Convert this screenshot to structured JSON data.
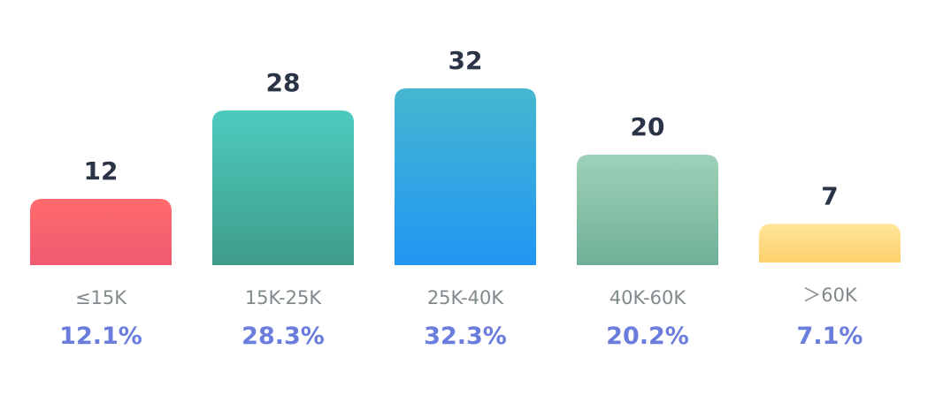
{
  "chart_data": {
    "type": "bar",
    "categories": [
      "≤15K",
      "15K-25K",
      "25K-40K",
      "40K-60K",
      "＞60K"
    ],
    "values": [
      12,
      28,
      32,
      20,
      7
    ],
    "percentages": [
      "12.1%",
      "28.3%",
      "32.3%",
      "20.2%",
      "7.1%"
    ],
    "ylim": [
      0,
      32
    ],
    "grid": false,
    "legend": "none",
    "bar_gradients": [
      [
        "#ff6b6b",
        "#ef5a73"
      ],
      [
        "#4ccbbe",
        "#3f9c8a"
      ],
      [
        "#45b7d0",
        "#2196f3"
      ],
      [
        "#9dd0b8",
        "#6fb096"
      ],
      [
        "#ffe59c",
        "#ffd06a"
      ]
    ]
  }
}
